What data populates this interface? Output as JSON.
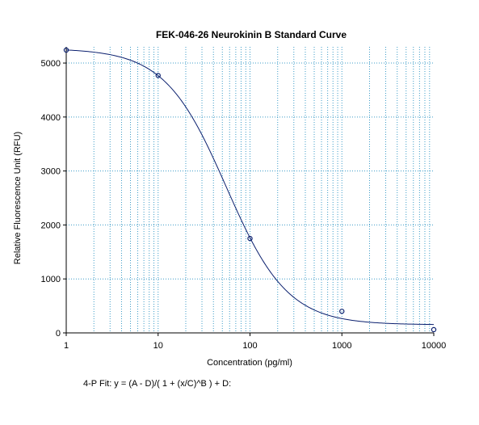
{
  "chart_data": {
    "type": "scatter",
    "title": "FEK-046-26 Neurokinin B Standard Curve",
    "xlabel": "Concentration (pg/ml)",
    "ylabel": "Relative Fluorescence Unit (RFU)",
    "x_scale": "log",
    "xlim": [
      1,
      10000
    ],
    "ylim": [
      0,
      5300
    ],
    "x_ticks": [
      "1",
      "10",
      "100",
      "1000",
      "10000"
    ],
    "y_ticks": [
      "0",
      "1000",
      "2000",
      "3000",
      "4000",
      "5000"
    ],
    "grid": true,
    "series": [
      {
        "type": "scatter",
        "x": [
          1,
          10,
          100,
          1000,
          10000
        ],
        "y": [
          5240,
          4770,
          1750,
          400,
          60
        ]
      },
      {
        "type": "line",
        "fit": "4-parameter logistic",
        "params": {
          "A": 5270,
          "B": 1.3,
          "C": 55,
          "D": 150
        }
      }
    ],
    "footnote": "4-P Fit: y = (A - D)/( 1 + (x/C)^B ) + D:",
    "colors": {
      "grid": "#3c9cc8",
      "curve": "#0a1f6e",
      "points": "#0a1f6e",
      "axis": "#000000"
    }
  }
}
